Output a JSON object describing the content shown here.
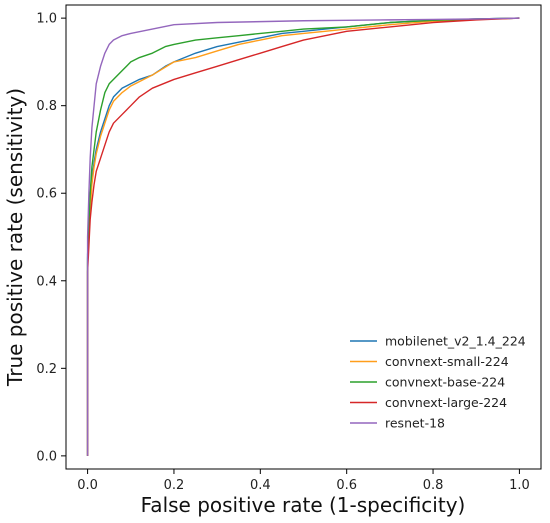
{
  "chart_data": {
    "type": "line",
    "title": "",
    "xlabel": "False positive rate (1-specificity)",
    "ylabel": "True positive rate (sensitivity)",
    "xlim": [
      -0.05,
      1.05
    ],
    "ylim": [
      -0.03,
      1.03
    ],
    "xticks": [
      "0.0",
      "0.2",
      "0.4",
      "0.6",
      "0.8",
      "1.0"
    ],
    "yticks": [
      "0.0",
      "0.2",
      "0.4",
      "0.6",
      "0.8",
      "1.0"
    ],
    "grid": false,
    "legend_position": "lower-right",
    "series": [
      {
        "name": "mobilenet_v2_1.4_224",
        "color": "#1f77b4",
        "points": [
          [
            0,
            0
          ],
          [
            0,
            0.46
          ],
          [
            0.003,
            0.52
          ],
          [
            0.006,
            0.58
          ],
          [
            0.01,
            0.63
          ],
          [
            0.015,
            0.67
          ],
          [
            0.02,
            0.7
          ],
          [
            0.03,
            0.74
          ],
          [
            0.04,
            0.77
          ],
          [
            0.05,
            0.8
          ],
          [
            0.06,
            0.82
          ],
          [
            0.08,
            0.84
          ],
          [
            0.1,
            0.85
          ],
          [
            0.12,
            0.86
          ],
          [
            0.15,
            0.87
          ],
          [
            0.18,
            0.89
          ],
          [
            0.2,
            0.9
          ],
          [
            0.25,
            0.92
          ],
          [
            0.3,
            0.935
          ],
          [
            0.35,
            0.945
          ],
          [
            0.4,
            0.955
          ],
          [
            0.45,
            0.965
          ],
          [
            0.5,
            0.97
          ],
          [
            0.55,
            0.975
          ],
          [
            0.6,
            0.98
          ],
          [
            0.7,
            0.99
          ],
          [
            0.8,
            0.995
          ],
          [
            0.9,
            0.998
          ],
          [
            1,
            1
          ]
        ]
      },
      {
        "name": "convnext-small-224",
        "color": "#ff9e1b",
        "points": [
          [
            0,
            0
          ],
          [
            0,
            0.44
          ],
          [
            0.003,
            0.5
          ],
          [
            0.006,
            0.56
          ],
          [
            0.01,
            0.62
          ],
          [
            0.015,
            0.66
          ],
          [
            0.02,
            0.69
          ],
          [
            0.03,
            0.73
          ],
          [
            0.04,
            0.76
          ],
          [
            0.05,
            0.79
          ],
          [
            0.06,
            0.81
          ],
          [
            0.08,
            0.83
          ],
          [
            0.1,
            0.845
          ],
          [
            0.12,
            0.855
          ],
          [
            0.15,
            0.87
          ],
          [
            0.2,
            0.9
          ],
          [
            0.25,
            0.91
          ],
          [
            0.3,
            0.925
          ],
          [
            0.35,
            0.94
          ],
          [
            0.4,
            0.95
          ],
          [
            0.45,
            0.96
          ],
          [
            0.5,
            0.965
          ],
          [
            0.55,
            0.97
          ],
          [
            0.6,
            0.975
          ],
          [
            0.7,
            0.985
          ],
          [
            0.8,
            0.993
          ],
          [
            0.9,
            0.997
          ],
          [
            1,
            1
          ]
        ]
      },
      {
        "name": "convnext-base-224",
        "color": "#2ca02c",
        "points": [
          [
            0,
            0
          ],
          [
            0,
            0.45
          ],
          [
            0.003,
            0.53
          ],
          [
            0.006,
            0.6
          ],
          [
            0.01,
            0.66
          ],
          [
            0.015,
            0.7
          ],
          [
            0.02,
            0.74
          ],
          [
            0.03,
            0.79
          ],
          [
            0.04,
            0.83
          ],
          [
            0.05,
            0.85
          ],
          [
            0.06,
            0.86
          ],
          [
            0.08,
            0.88
          ],
          [
            0.1,
            0.9
          ],
          [
            0.12,
            0.91
          ],
          [
            0.15,
            0.92
          ],
          [
            0.18,
            0.935
          ],
          [
            0.2,
            0.94
          ],
          [
            0.25,
            0.95
          ],
          [
            0.3,
            0.955
          ],
          [
            0.35,
            0.96
          ],
          [
            0.4,
            0.965
          ],
          [
            0.45,
            0.97
          ],
          [
            0.5,
            0.975
          ],
          [
            0.6,
            0.98
          ],
          [
            0.7,
            0.99
          ],
          [
            0.8,
            0.995
          ],
          [
            0.9,
            0.998
          ],
          [
            1,
            1
          ]
        ]
      },
      {
        "name": "convnext-large-224",
        "color": "#d62728",
        "points": [
          [
            0,
            0
          ],
          [
            0,
            0.42
          ],
          [
            0.003,
            0.48
          ],
          [
            0.006,
            0.54
          ],
          [
            0.01,
            0.58
          ],
          [
            0.015,
            0.62
          ],
          [
            0.02,
            0.65
          ],
          [
            0.03,
            0.68
          ],
          [
            0.04,
            0.71
          ],
          [
            0.05,
            0.74
          ],
          [
            0.06,
            0.76
          ],
          [
            0.08,
            0.78
          ],
          [
            0.1,
            0.8
          ],
          [
            0.12,
            0.82
          ],
          [
            0.15,
            0.84
          ],
          [
            0.2,
            0.86
          ],
          [
            0.25,
            0.875
          ],
          [
            0.3,
            0.89
          ],
          [
            0.35,
            0.905
          ],
          [
            0.4,
            0.92
          ],
          [
            0.45,
            0.935
          ],
          [
            0.5,
            0.95
          ],
          [
            0.55,
            0.96
          ],
          [
            0.6,
            0.97
          ],
          [
            0.7,
            0.98
          ],
          [
            0.8,
            0.99
          ],
          [
            0.9,
            0.996
          ],
          [
            1,
            1
          ]
        ]
      },
      {
        "name": "resnet-18",
        "color": "#9467bd",
        "points": [
          [
            0,
            0
          ],
          [
            0,
            0.5
          ],
          [
            0.003,
            0.6
          ],
          [
            0.006,
            0.68
          ],
          [
            0.01,
            0.75
          ],
          [
            0.015,
            0.8
          ],
          [
            0.02,
            0.85
          ],
          [
            0.03,
            0.89
          ],
          [
            0.04,
            0.92
          ],
          [
            0.05,
            0.94
          ],
          [
            0.06,
            0.95
          ],
          [
            0.08,
            0.96
          ],
          [
            0.1,
            0.965
          ],
          [
            0.15,
            0.975
          ],
          [
            0.2,
            0.985
          ],
          [
            0.3,
            0.99
          ],
          [
            0.4,
            0.992
          ],
          [
            0.5,
            0.994
          ],
          [
            0.6,
            0.995
          ],
          [
            0.7,
            0.996
          ],
          [
            0.8,
            0.997
          ],
          [
            0.9,
            0.998
          ],
          [
            1,
            1
          ]
        ]
      }
    ]
  }
}
